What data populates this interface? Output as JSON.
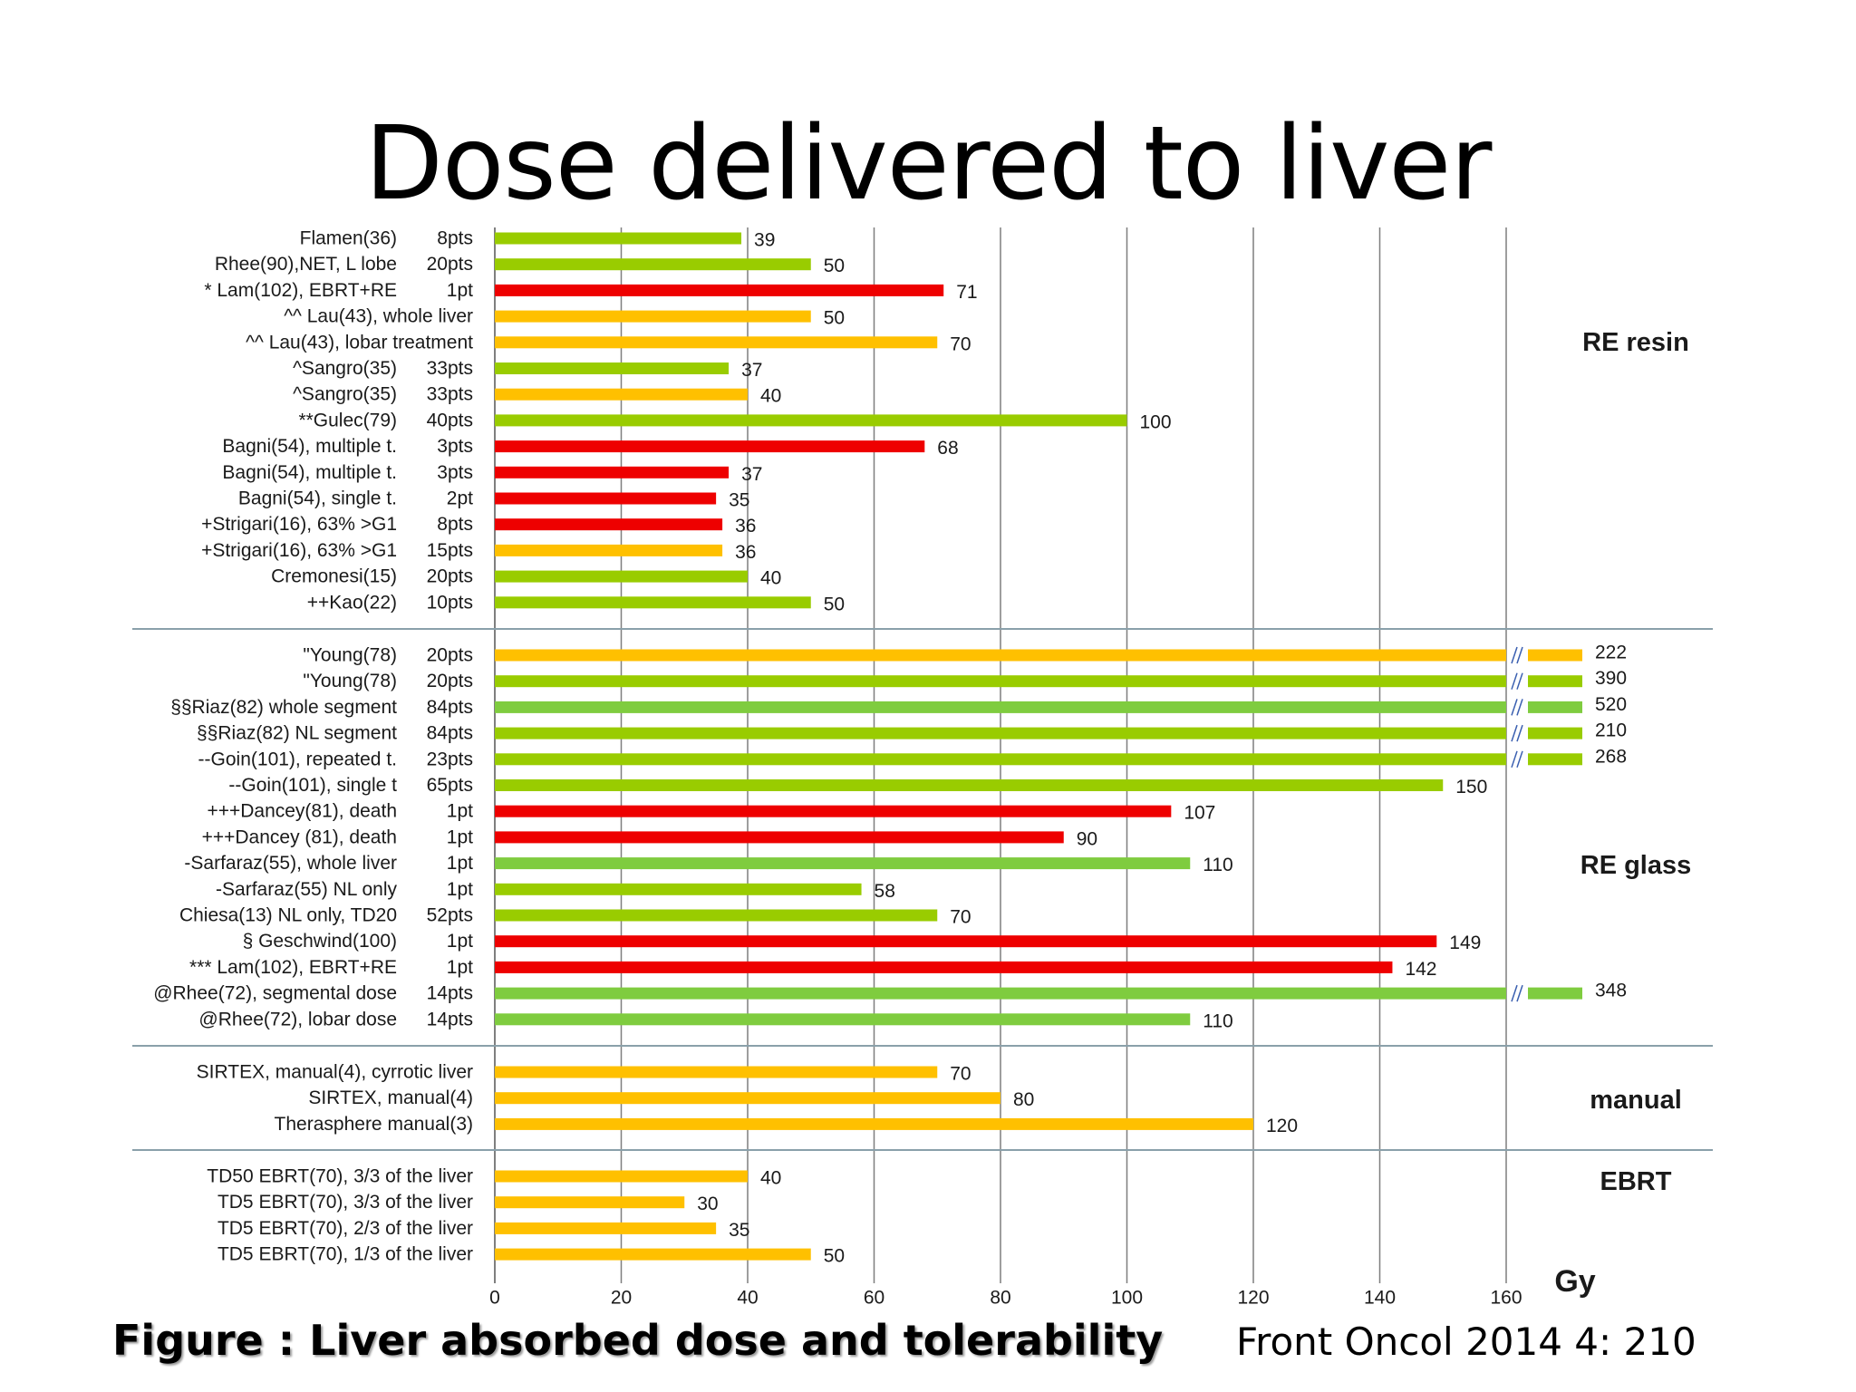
{
  "slide_title": "Dose delivered to liver",
  "caption": "Figure : Liver absorbed dose and tolerability",
  "citation": "Front Oncol 2014 4: 210",
  "colors": {
    "green": "#99cc00",
    "light_green": "#7fcc3f",
    "yellow": "#ffc000",
    "red": "#ee0000"
  },
  "chart_data": {
    "type": "bar",
    "orientation": "horizontal",
    "x_unit_label": "Gy",
    "xlim": [
      0,
      160
    ],
    "x_ticks": [
      "0",
      "20",
      "40",
      "60",
      "80",
      "100",
      "120",
      "140",
      "160"
    ],
    "grid": true,
    "groups": [
      {
        "name": "RE resin",
        "rows": [
          {
            "label": "Flamen(36)",
            "pts": "8pts",
            "value": 39,
            "value_label": "39",
            "color": "green",
            "broken": false
          },
          {
            "label": "Rhee(90),NET, L lobe",
            "pts": "20pts",
            "value": 50,
            "value_label": "50",
            "color": "green",
            "broken": false
          },
          {
            "label": "* Lam(102), EBRT+RE",
            "pts": "1pt",
            "value": 71,
            "value_label": "71",
            "color": "red",
            "broken": false
          },
          {
            "label": "^^ Lau(43), whole liver",
            "pts": "",
            "value": 50,
            "value_label": "50",
            "color": "yellow",
            "broken": false
          },
          {
            "label": "^^ Lau(43), lobar treatment",
            "pts": "",
            "value": 70,
            "value_label": "70",
            "color": "yellow",
            "broken": false
          },
          {
            "label": "^Sangro(35)",
            "pts": "33pts",
            "value": 37,
            "value_label": "37",
            "color": "green",
            "broken": false
          },
          {
            "label": "^Sangro(35)",
            "pts": "33pts",
            "value": 40,
            "value_label": "40",
            "color": "yellow",
            "broken": false
          },
          {
            "label": "**Gulec(79)",
            "pts": "40pts",
            "value": 100,
            "value_label": "100",
            "color": "green",
            "broken": false
          },
          {
            "label": "Bagni(54), multiple t.",
            "pts": "3pts",
            "value": 68,
            "value_label": "68",
            "color": "red",
            "broken": false
          },
          {
            "label": "Bagni(54), multiple t.",
            "pts": "3pts",
            "value": 37,
            "value_label": "37",
            "color": "red",
            "broken": false
          },
          {
            "label": "Bagni(54), single t.",
            "pts": "2pt",
            "value": 35,
            "value_label": "35",
            "color": "red",
            "broken": false
          },
          {
            "label": "+Strigari(16), 63% >G1",
            "pts": "8pts",
            "value": 36,
            "value_label": "36",
            "color": "red",
            "broken": false
          },
          {
            "label": "+Strigari(16), 63% >G1",
            "pts": "15pts",
            "value": 36,
            "value_label": "36",
            "color": "yellow",
            "broken": false
          },
          {
            "label": "Cremonesi(15)",
            "pts": "20pts",
            "value": 40,
            "value_label": "40",
            "color": "green",
            "broken": false
          },
          {
            "label": "++Kao(22)",
            "pts": "10pts",
            "value": 50,
            "value_label": "50",
            "color": "green",
            "broken": false
          }
        ]
      },
      {
        "name": "RE glass",
        "rows": [
          {
            "label": "\"Young(78)",
            "pts": "20pts",
            "value": 222,
            "value_label": "222",
            "color": "yellow",
            "broken": true
          },
          {
            "label": "\"Young(78)",
            "pts": "20pts",
            "value": 390,
            "value_label": "390",
            "color": "green",
            "broken": true
          },
          {
            "label": "§§Riaz(82) whole segment",
            "pts": "84pts",
            "value": 520,
            "value_label": "520",
            "color": "light_green",
            "broken": true
          },
          {
            "label": "§§Riaz(82) NL segment",
            "pts": "84pts",
            "value": 210,
            "value_label": "210",
            "color": "green",
            "broken": true
          },
          {
            "label": "--Goin(101), repeated t.",
            "pts": "23pts",
            "value": 268,
            "value_label": "268",
            "color": "green",
            "broken": true
          },
          {
            "label": "--Goin(101), single t",
            "pts": "65pts",
            "value": 150,
            "value_label": "150",
            "color": "green",
            "broken": false
          },
          {
            "label": "+++Dancey(81), death",
            "pts": "1pt",
            "value": 107,
            "value_label": "107",
            "color": "red",
            "broken": false
          },
          {
            "label": "+++Dancey (81), death",
            "pts": "1pt",
            "value": 90,
            "value_label": "90",
            "color": "red",
            "broken": false
          },
          {
            "label": "-Sarfaraz(55), whole liver",
            "pts": "1pt",
            "value": 110,
            "value_label": "110",
            "color": "light_green",
            "broken": false
          },
          {
            "label": "-Sarfaraz(55) NL only",
            "pts": "1pt",
            "value": 58,
            "value_label": "58",
            "color": "green",
            "broken": false
          },
          {
            "label": "Chiesa(13) NL only, TD20",
            "pts": "52pts",
            "value": 70,
            "value_label": "70",
            "color": "green",
            "broken": false
          },
          {
            "label": "§ Geschwind(100)",
            "pts": "1pt",
            "value": 149,
            "value_label": "149",
            "color": "red",
            "broken": false
          },
          {
            "label": "*** Lam(102), EBRT+RE",
            "pts": "1pt",
            "value": 142,
            "value_label": "142",
            "color": "red",
            "broken": false
          },
          {
            "label": "@Rhee(72), segmental dose",
            "pts": "14pts",
            "value": 348,
            "value_label": "348",
            "color": "light_green",
            "broken": true
          },
          {
            "label": "@Rhee(72), lobar dose",
            "pts": "14pts",
            "value": 110,
            "value_label": "110",
            "color": "light_green",
            "broken": false
          }
        ]
      },
      {
        "name": "manual",
        "rows": [
          {
            "label": "SIRTEX, manual(4), cyrrotic liver",
            "pts": "",
            "value": 70,
            "value_label": "70",
            "color": "yellow",
            "broken": false
          },
          {
            "label": "SIRTEX, manual(4)",
            "pts": "",
            "value": 80,
            "value_label": "80",
            "color": "yellow",
            "broken": false
          },
          {
            "label": "Therasphere manual(3)",
            "pts": "",
            "value": 120,
            "value_label": "120",
            "color": "yellow",
            "broken": false
          }
        ]
      },
      {
        "name": "EBRT",
        "rows": [
          {
            "label": "TD50 EBRT(70), 3/3 of the liver",
            "pts": "",
            "value": 40,
            "value_label": "40",
            "color": "yellow",
            "broken": false
          },
          {
            "label": "TD5 EBRT(70), 3/3 of the liver",
            "pts": "",
            "value": 30,
            "value_label": "30",
            "color": "yellow",
            "broken": false
          },
          {
            "label": "TD5 EBRT(70), 2/3 of the liver",
            "pts": "",
            "value": 35,
            "value_label": "35",
            "color": "yellow",
            "broken": false
          },
          {
            "label": "TD5 EBRT(70), 1/3 of the liver",
            "pts": "",
            "value": 50,
            "value_label": "50",
            "color": "yellow",
            "broken": false
          }
        ]
      }
    ]
  }
}
